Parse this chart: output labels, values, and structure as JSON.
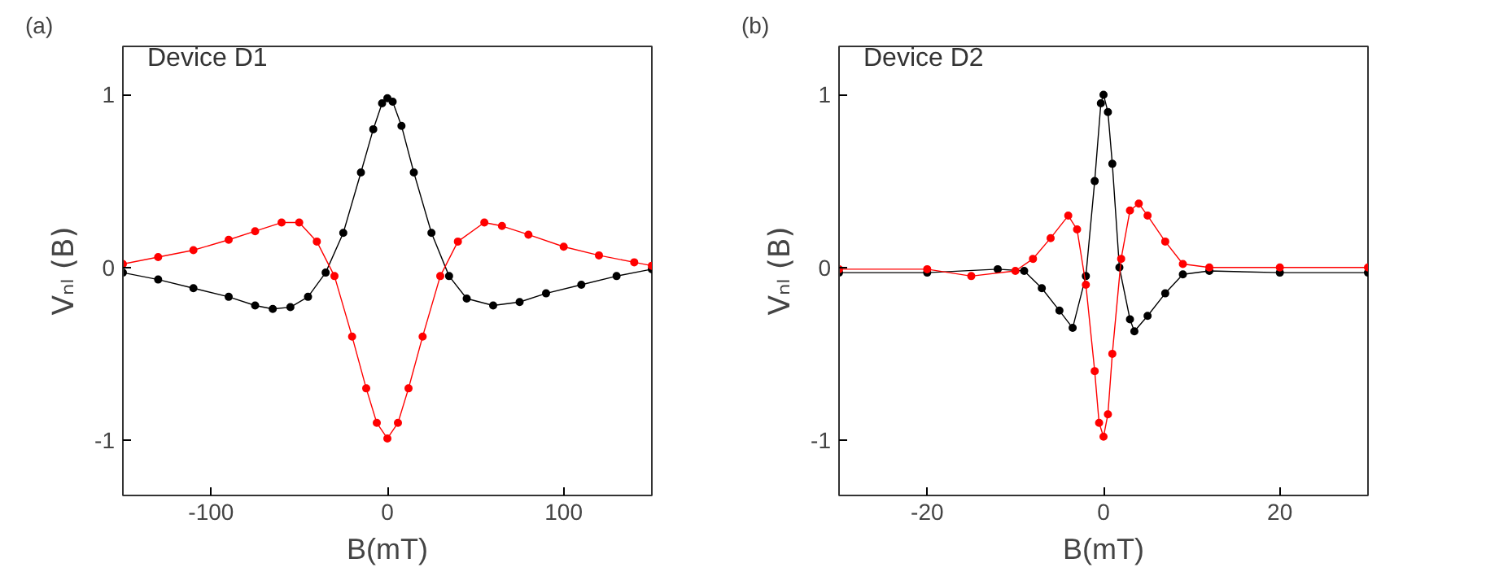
{
  "chart_data": [
    {
      "type": "line",
      "title": "(a)",
      "xlabel": "B(mT)",
      "ylabel": "Vₙₗ (B)",
      "annotations": [
        "Device D1"
      ],
      "marker": "circle",
      "xlim": [
        -150,
        150
      ],
      "xticks": [
        -100,
        0,
        100
      ],
      "ylim": [
        -1.32,
        1.28
      ],
      "yticks": [
        -1,
        0,
        1
      ],
      "series": [
        {
          "color": "#000000",
          "x": [
            -150,
            -130,
            -110,
            -90,
            -75,
            -65,
            -55,
            -45,
            -35,
            -25,
            -15,
            -8,
            -3,
            0,
            3,
            8,
            15,
            25,
            35,
            45,
            60,
            75,
            90,
            110,
            130,
            150
          ],
          "values": [
            -0.03,
            -0.07,
            -0.12,
            -0.17,
            -0.22,
            -0.24,
            -0.23,
            -0.17,
            -0.03,
            0.2,
            0.55,
            0.8,
            0.95,
            0.98,
            0.96,
            0.82,
            0.55,
            0.2,
            -0.05,
            -0.18,
            -0.22,
            -0.2,
            -0.15,
            -0.1,
            -0.05,
            -0.01
          ]
        },
        {
          "color": "#ff0000",
          "x": [
            -150,
            -130,
            -110,
            -90,
            -75,
            -60,
            -50,
            -40,
            -30,
            -20,
            -12,
            -6,
            0,
            6,
            12,
            20,
            30,
            40,
            55,
            65,
            80,
            100,
            120,
            140,
            150
          ],
          "values": [
            0.02,
            0.06,
            0.1,
            0.16,
            0.21,
            0.26,
            0.26,
            0.15,
            -0.05,
            -0.4,
            -0.7,
            -0.9,
            -0.99,
            -0.9,
            -0.7,
            -0.4,
            -0.05,
            0.15,
            0.26,
            0.24,
            0.19,
            0.12,
            0.07,
            0.03,
            0.01
          ]
        }
      ]
    },
    {
      "type": "line",
      "title": "(b)",
      "xlabel": "B(mT)",
      "ylabel": "Vₙₗ (B)",
      "annotations": [
        "Device D2"
      ],
      "marker": "circle",
      "xlim": [
        -30,
        30
      ],
      "xticks": [
        -20,
        0,
        20
      ],
      "ylim": [
        -1.32,
        1.28
      ],
      "yticks": [
        -1,
        0,
        1
      ],
      "series": [
        {
          "color": "#000000",
          "x": [
            -30,
            -20,
            -12,
            -9,
            -7,
            -5,
            -3.5,
            -2,
            -1,
            -0.3,
            0,
            0.5,
            1,
            1.8,
            3,
            3.5,
            5,
            7,
            9,
            12,
            20,
            30
          ],
          "values": [
            -0.03,
            -0.03,
            -0.01,
            -0.02,
            -0.12,
            -0.25,
            -0.35,
            -0.05,
            0.5,
            0.95,
            1.0,
            0.9,
            0.6,
            0.0,
            -0.3,
            -0.37,
            -0.28,
            -0.15,
            -0.04,
            -0.02,
            -0.03,
            -0.03
          ]
        },
        {
          "color": "#ff0000",
          "x": [
            -30,
            -20,
            -15,
            -10,
            -8,
            -6,
            -4,
            -3,
            -2,
            -1,
            -0.5,
            0,
            0.5,
            1,
            2,
            3,
            4,
            5,
            7,
            9,
            12,
            20,
            30
          ],
          "values": [
            -0.01,
            -0.01,
            -0.05,
            -0.02,
            0.05,
            0.17,
            0.3,
            0.22,
            -0.1,
            -0.6,
            -0.9,
            -0.98,
            -0.85,
            -0.5,
            0.05,
            0.33,
            0.37,
            0.3,
            0.15,
            0.02,
            0.0,
            0.0,
            0.0
          ]
        }
      ]
    }
  ]
}
